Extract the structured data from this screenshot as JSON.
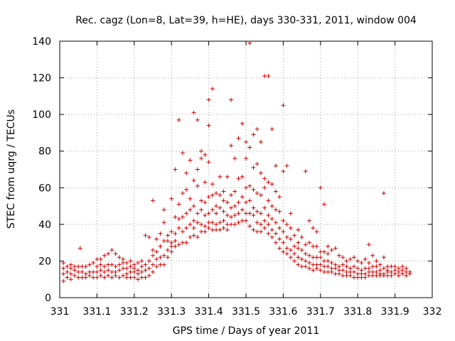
{
  "chart_data": {
    "type": "scatter",
    "title": "Rec. cagz (Lon=8, Lat=39, h=HE), days 330-331, 2011, window 004",
    "xlabel": "GPS time / Days of year 2011",
    "ylabel": "STEC from uqrg / TECUs",
    "xlim": [
      331,
      332
    ],
    "ylim": [
      0,
      140
    ],
    "xticks": [
      331,
      331.1,
      331.2,
      331.3,
      331.4,
      331.5,
      331.6,
      331.7,
      331.8,
      331.9,
      332
    ],
    "xtick_labels": [
      "331",
      "331.1",
      "331.2",
      "331.3",
      "331.4",
      "331.5",
      "331.6",
      "331.7",
      "331.8",
      "331.9",
      "332"
    ],
    "yticks": [
      0,
      20,
      40,
      60,
      80,
      100,
      120,
      140
    ],
    "ytick_labels": [
      "0",
      "20",
      "40",
      "60",
      "80",
      "100",
      "120",
      "140"
    ],
    "grid": true,
    "marker": "plus",
    "marker_color": "#cc0000",
    "points": [
      [
        331.01,
        9
      ],
      [
        331.01,
        13
      ],
      [
        331.01,
        16
      ],
      [
        331.01,
        19
      ],
      [
        331.02,
        11
      ],
      [
        331.02,
        14
      ],
      [
        331.02,
        17
      ],
      [
        331.03,
        10
      ],
      [
        331.03,
        13
      ],
      [
        331.03,
        16
      ],
      [
        331.03,
        18
      ],
      [
        331.04,
        12
      ],
      [
        331.04,
        15
      ],
      [
        331.04,
        17
      ],
      [
        331.05,
        11
      ],
      [
        331.05,
        14
      ],
      [
        331.05,
        17
      ],
      [
        331.055,
        27
      ],
      [
        331.06,
        11
      ],
      [
        331.06,
        14
      ],
      [
        331.06,
        17
      ],
      [
        331.07,
        11
      ],
      [
        331.07,
        13
      ],
      [
        331.07,
        17
      ],
      [
        331.08,
        12
      ],
      [
        331.08,
        14
      ],
      [
        331.08,
        18
      ],
      [
        331.09,
        11
      ],
      [
        331.09,
        14
      ],
      [
        331.09,
        19
      ],
      [
        331.1,
        11
      ],
      [
        331.1,
        14
      ],
      [
        331.1,
        17
      ],
      [
        331.1,
        21
      ],
      [
        331.11,
        12
      ],
      [
        331.11,
        15
      ],
      [
        331.11,
        18
      ],
      [
        331.11,
        21
      ],
      [
        331.12,
        11
      ],
      [
        331.12,
        14
      ],
      [
        331.12,
        17
      ],
      [
        331.12,
        23
      ],
      [
        331.13,
        12
      ],
      [
        331.13,
        15
      ],
      [
        331.13,
        18
      ],
      [
        331.13,
        24
      ],
      [
        331.14,
        11
      ],
      [
        331.14,
        14
      ],
      [
        331.14,
        18
      ],
      [
        331.14,
        26
      ],
      [
        331.15,
        12
      ],
      [
        331.15,
        14
      ],
      [
        331.15,
        17
      ],
      [
        331.15,
        24
      ],
      [
        331.16,
        11
      ],
      [
        331.16,
        15
      ],
      [
        331.16,
        18
      ],
      [
        331.16,
        22
      ],
      [
        331.17,
        12
      ],
      [
        331.17,
        16
      ],
      [
        331.17,
        19
      ],
      [
        331.17,
        21
      ],
      [
        331.18,
        11
      ],
      [
        331.18,
        13
      ],
      [
        331.18,
        16
      ],
      [
        331.18,
        19
      ],
      [
        331.19,
        11
      ],
      [
        331.19,
        14
      ],
      [
        331.19,
        17
      ],
      [
        331.19,
        20
      ],
      [
        331.2,
        11
      ],
      [
        331.2,
        14
      ],
      [
        331.2,
        16
      ],
      [
        331.2,
        18
      ],
      [
        331.21,
        10
      ],
      [
        331.21,
        13
      ],
      [
        331.21,
        15
      ],
      [
        331.21,
        19
      ],
      [
        331.22,
        11
      ],
      [
        331.22,
        14
      ],
      [
        331.22,
        17
      ],
      [
        331.22,
        20
      ],
      [
        331.23,
        11
      ],
      [
        331.23,
        15
      ],
      [
        331.23,
        18
      ],
      [
        331.23,
        34
      ],
      [
        331.24,
        12
      ],
      [
        331.24,
        16
      ],
      [
        331.24,
        20
      ],
      [
        331.24,
        33
      ],
      [
        331.25,
        14
      ],
      [
        331.25,
        18
      ],
      [
        331.25,
        23
      ],
      [
        331.25,
        26
      ],
      [
        331.25,
        53
      ],
      [
        331.26,
        17
      ],
      [
        331.26,
        21
      ],
      [
        331.26,
        25
      ],
      [
        331.26,
        32
      ],
      [
        331.27,
        18
      ],
      [
        331.27,
        22
      ],
      [
        331.27,
        28
      ],
      [
        331.27,
        35
      ],
      [
        331.28,
        18
      ],
      [
        331.28,
        23
      ],
      [
        331.28,
        31
      ],
      [
        331.28,
        41
      ],
      [
        331.28,
        48
      ],
      [
        331.29,
        22
      ],
      [
        331.29,
        26
      ],
      [
        331.29,
        31
      ],
      [
        331.29,
        34
      ],
      [
        331.3,
        25
      ],
      [
        331.3,
        28
      ],
      [
        331.3,
        30
      ],
      [
        331.3,
        36
      ],
      [
        331.3,
        54
      ],
      [
        331.31,
        28
      ],
      [
        331.31,
        31
      ],
      [
        331.31,
        35
      ],
      [
        331.31,
        44
      ],
      [
        331.31,
        70
      ],
      [
        331.32,
        29
      ],
      [
        331.32,
        38
      ],
      [
        331.32,
        43
      ],
      [
        331.32,
        51
      ],
      [
        331.32,
        97
      ],
      [
        331.33,
        30
      ],
      [
        331.33,
        36
      ],
      [
        331.33,
        44
      ],
      [
        331.33,
        57
      ],
      [
        331.33,
        79
      ],
      [
        331.34,
        30
      ],
      [
        331.34,
        38
      ],
      [
        331.34,
        46
      ],
      [
        331.34,
        59
      ],
      [
        331.34,
        68
      ],
      [
        331.35,
        33
      ],
      [
        331.35,
        40
      ],
      [
        331.35,
        48
      ],
      [
        331.35,
        54
      ],
      [
        331.35,
        75
      ],
      [
        331.36,
        34
      ],
      [
        331.36,
        38
      ],
      [
        331.36,
        42
      ],
      [
        331.36,
        50
      ],
      [
        331.36,
        64
      ],
      [
        331.36,
        101
      ],
      [
        331.37,
        33
      ],
      [
        331.37,
        41
      ],
      [
        331.37,
        46
      ],
      [
        331.37,
        61
      ],
      [
        331.37,
        70
      ],
      [
        331.37,
        97
      ],
      [
        331.38,
        36
      ],
      [
        331.38,
        40
      ],
      [
        331.38,
        48
      ],
      [
        331.38,
        53
      ],
      [
        331.38,
        76
      ],
      [
        331.38,
        80
      ],
      [
        331.39,
        36
      ],
      [
        331.39,
        39
      ],
      [
        331.39,
        45
      ],
      [
        331.39,
        52
      ],
      [
        331.39,
        63
      ],
      [
        331.39,
        78
      ],
      [
        331.4,
        38
      ],
      [
        331.4,
        41
      ],
      [
        331.4,
        46
      ],
      [
        331.4,
        55
      ],
      [
        331.4,
        74
      ],
      [
        331.4,
        94
      ],
      [
        331.4,
        108
      ],
      [
        331.41,
        37
      ],
      [
        331.41,
        41
      ],
      [
        331.41,
        48
      ],
      [
        331.41,
        56
      ],
      [
        331.41,
        62
      ],
      [
        331.41,
        114
      ],
      [
        331.42,
        37
      ],
      [
        331.42,
        40
      ],
      [
        331.42,
        46
      ],
      [
        331.42,
        50
      ],
      [
        331.42,
        57
      ],
      [
        331.43,
        37
      ],
      [
        331.43,
        41
      ],
      [
        331.43,
        49
      ],
      [
        331.43,
        56
      ],
      [
        331.43,
        66
      ],
      [
        331.44,
        38
      ],
      [
        331.44,
        42
      ],
      [
        331.44,
        47
      ],
      [
        331.44,
        53
      ],
      [
        331.44,
        58
      ],
      [
        331.45,
        37
      ],
      [
        331.45,
        40
      ],
      [
        331.45,
        45
      ],
      [
        331.45,
        52
      ],
      [
        331.45,
        66
      ],
      [
        331.46,
        40
      ],
      [
        331.46,
        44
      ],
      [
        331.46,
        49
      ],
      [
        331.46,
        56
      ],
      [
        331.46,
        83
      ],
      [
        331.46,
        108
      ],
      [
        331.47,
        40
      ],
      [
        331.47,
        45
      ],
      [
        331.47,
        50
      ],
      [
        331.47,
        58
      ],
      [
        331.47,
        76
      ],
      [
        331.48,
        41
      ],
      [
        331.48,
        46
      ],
      [
        331.48,
        52
      ],
      [
        331.48,
        65
      ],
      [
        331.48,
        87
      ],
      [
        331.49,
        42
      ],
      [
        331.49,
        48
      ],
      [
        331.49,
        55
      ],
      [
        331.49,
        66
      ],
      [
        331.49,
        95
      ],
      [
        331.5,
        42
      ],
      [
        331.5,
        46
      ],
      [
        331.5,
        52
      ],
      [
        331.5,
        60
      ],
      [
        331.5,
        76
      ],
      [
        331.5,
        85
      ],
      [
        331.51,
        39
      ],
      [
        331.51,
        46
      ],
      [
        331.51,
        53
      ],
      [
        331.51,
        61
      ],
      [
        331.51,
        82
      ],
      [
        331.51,
        139
      ],
      [
        331.52,
        37
      ],
      [
        331.52,
        45
      ],
      [
        331.52,
        49
      ],
      [
        331.52,
        59
      ],
      [
        331.52,
        71
      ],
      [
        331.52,
        89
      ],
      [
        331.53,
        36
      ],
      [
        331.53,
        41
      ],
      [
        331.53,
        47
      ],
      [
        331.53,
        57
      ],
      [
        331.53,
        73
      ],
      [
        331.53,
        92
      ],
      [
        331.54,
        36
      ],
      [
        331.54,
        40
      ],
      [
        331.54,
        46
      ],
      [
        331.54,
        56
      ],
      [
        331.54,
        68
      ],
      [
        331.54,
        85
      ],
      [
        331.55,
        38
      ],
      [
        331.55,
        42
      ],
      [
        331.55,
        49
      ],
      [
        331.55,
        60
      ],
      [
        331.55,
        65
      ],
      [
        331.55,
        121
      ],
      [
        331.56,
        35
      ],
      [
        331.56,
        40
      ],
      [
        331.56,
        45
      ],
      [
        331.56,
        53
      ],
      [
        331.56,
        63
      ],
      [
        331.56,
        121
      ],
      [
        331.57,
        33
      ],
      [
        331.57,
        37
      ],
      [
        331.57,
        43
      ],
      [
        331.57,
        50
      ],
      [
        331.57,
        62
      ],
      [
        331.57,
        92
      ],
      [
        331.58,
        30
      ],
      [
        331.58,
        35
      ],
      [
        331.58,
        41
      ],
      [
        331.58,
        48
      ],
      [
        331.58,
        58
      ],
      [
        331.58,
        72
      ],
      [
        331.59,
        27
      ],
      [
        331.59,
        32
      ],
      [
        331.59,
        38
      ],
      [
        331.59,
        47
      ],
      [
        331.59,
        55
      ],
      [
        331.6,
        25
      ],
      [
        331.6,
        30
      ],
      [
        331.6,
        36
      ],
      [
        331.6,
        42
      ],
      [
        331.6,
        69
      ],
      [
        331.6,
        105
      ],
      [
        331.61,
        24
      ],
      [
        331.61,
        27
      ],
      [
        331.61,
        33
      ],
      [
        331.61,
        40
      ],
      [
        331.61,
        72
      ],
      [
        331.62,
        22
      ],
      [
        331.62,
        26
      ],
      [
        331.62,
        32
      ],
      [
        331.62,
        38
      ],
      [
        331.62,
        46
      ],
      [
        331.63,
        20
      ],
      [
        331.63,
        24
      ],
      [
        331.63,
        28
      ],
      [
        331.63,
        34
      ],
      [
        331.64,
        18
      ],
      [
        331.64,
        22
      ],
      [
        331.64,
        27
      ],
      [
        331.64,
        30
      ],
      [
        331.64,
        37
      ],
      [
        331.65,
        17
      ],
      [
        331.65,
        21
      ],
      [
        331.65,
        26
      ],
      [
        331.65,
        33
      ],
      [
        331.66,
        17
      ],
      [
        331.66,
        20
      ],
      [
        331.66,
        24
      ],
      [
        331.66,
        29
      ],
      [
        331.66,
        69
      ],
      [
        331.67,
        16
      ],
      [
        331.67,
        19
      ],
      [
        331.67,
        23
      ],
      [
        331.67,
        30
      ],
      [
        331.67,
        42
      ],
      [
        331.68,
        15
      ],
      [
        331.68,
        18
      ],
      [
        331.68,
        22
      ],
      [
        331.68,
        28
      ],
      [
        331.68,
        38
      ],
      [
        331.69,
        16
      ],
      [
        331.69,
        18
      ],
      [
        331.69,
        22
      ],
      [
        331.69,
        28
      ],
      [
        331.69,
        36
      ],
      [
        331.7,
        15
      ],
      [
        331.7,
        18
      ],
      [
        331.7,
        22
      ],
      [
        331.7,
        25
      ],
      [
        331.7,
        60
      ],
      [
        331.71,
        14
      ],
      [
        331.71,
        17
      ],
      [
        331.71,
        20
      ],
      [
        331.71,
        25
      ],
      [
        331.71,
        51
      ],
      [
        331.72,
        14
      ],
      [
        331.72,
        17
      ],
      [
        331.72,
        20
      ],
      [
        331.72,
        24
      ],
      [
        331.72,
        28
      ],
      [
        331.73,
        14
      ],
      [
        331.73,
        16
      ],
      [
        331.73,
        19
      ],
      [
        331.73,
        26
      ],
      [
        331.74,
        13
      ],
      [
        331.74,
        16
      ],
      [
        331.74,
        18
      ],
      [
        331.74,
        27
      ],
      [
        331.75,
        13
      ],
      [
        331.75,
        15
      ],
      [
        331.75,
        17
      ],
      [
        331.75,
        23
      ],
      [
        331.76,
        12
      ],
      [
        331.76,
        15
      ],
      [
        331.76,
        18
      ],
      [
        331.76,
        22
      ],
      [
        331.77,
        12
      ],
      [
        331.77,
        14
      ],
      [
        331.77,
        17
      ],
      [
        331.77,
        20
      ],
      [
        331.78,
        12
      ],
      [
        331.78,
        14
      ],
      [
        331.78,
        16
      ],
      [
        331.78,
        21
      ],
      [
        331.79,
        11
      ],
      [
        331.79,
        14
      ],
      [
        331.79,
        17
      ],
      [
        331.79,
        22
      ],
      [
        331.8,
        11
      ],
      [
        331.8,
        13
      ],
      [
        331.8,
        16
      ],
      [
        331.8,
        20
      ],
      [
        331.81,
        11
      ],
      [
        331.81,
        13
      ],
      [
        331.81,
        15
      ],
      [
        331.81,
        19
      ],
      [
        331.82,
        11
      ],
      [
        331.82,
        13
      ],
      [
        331.82,
        16
      ],
      [
        331.82,
        21
      ],
      [
        331.83,
        12
      ],
      [
        331.83,
        14
      ],
      [
        331.83,
        16
      ],
      [
        331.83,
        19
      ],
      [
        331.83,
        29
      ],
      [
        331.84,
        12
      ],
      [
        331.84,
        14
      ],
      [
        331.84,
        17
      ],
      [
        331.84,
        23
      ],
      [
        331.85,
        12
      ],
      [
        331.85,
        14
      ],
      [
        331.85,
        17
      ],
      [
        331.85,
        20
      ],
      [
        331.86,
        12
      ],
      [
        331.86,
        13
      ],
      [
        331.86,
        15
      ],
      [
        331.86,
        18
      ],
      [
        331.87,
        12
      ],
      [
        331.87,
        13
      ],
      [
        331.87,
        16
      ],
      [
        331.87,
        22
      ],
      [
        331.87,
        57
      ],
      [
        331.88,
        12
      ],
      [
        331.88,
        14
      ],
      [
        331.88,
        17
      ],
      [
        331.88,
        15
      ],
      [
        331.89,
        12
      ],
      [
        331.89,
        14
      ],
      [
        331.89,
        17
      ],
      [
        331.9,
        13
      ],
      [
        331.9,
        15
      ],
      [
        331.9,
        17
      ],
      [
        331.91,
        12
      ],
      [
        331.91,
        14
      ],
      [
        331.91,
        16
      ],
      [
        331.92,
        13
      ],
      [
        331.92,
        15
      ],
      [
        331.92,
        17
      ],
      [
        331.93,
        12
      ],
      [
        331.93,
        14
      ],
      [
        331.93,
        16
      ],
      [
        331.94,
        13
      ],
      [
        331.94,
        14
      ]
    ]
  }
}
